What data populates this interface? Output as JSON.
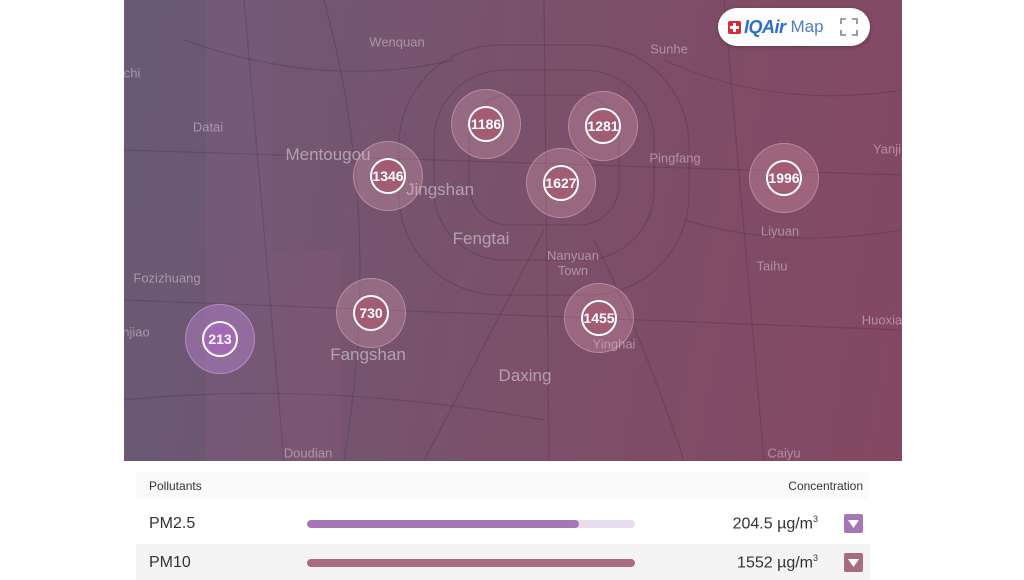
{
  "map": {
    "places": [
      {
        "name": "Wenquan",
        "big": false
      },
      {
        "name": "Sunhe",
        "big": false
      },
      {
        "name": "chi",
        "big": false
      },
      {
        "name": "Datai",
        "big": false
      },
      {
        "name": "Mentougou",
        "big": true
      },
      {
        "name": "Jingshan",
        "big": true
      },
      {
        "name": "Pingfang",
        "big": false
      },
      {
        "name": "Yanji",
        "big": false
      },
      {
        "name": "Fengtai",
        "big": true
      },
      {
        "name": "Liyuan",
        "big": false
      },
      {
        "name": "Nanyuan Town",
        "big": false
      },
      {
        "name": "Taihu",
        "big": false
      },
      {
        "name": "Fozizhuang",
        "big": false
      },
      {
        "name": "njiao",
        "big": false
      },
      {
        "name": "Fangshan",
        "big": true
      },
      {
        "name": "Huoxia",
        "big": false
      },
      {
        "name": "Daxing",
        "big": true
      },
      {
        "name": "Yinghai",
        "big": false
      },
      {
        "name": "Doudian",
        "big": false
      },
      {
        "name": "Caiyu",
        "big": false
      }
    ],
    "clusters": [
      {
        "value": "1186",
        "level": "high"
      },
      {
        "value": "1281",
        "level": "high"
      },
      {
        "value": "1346",
        "level": "high"
      },
      {
        "value": "1627",
        "level": "high"
      },
      {
        "value": "1996",
        "level": "high"
      },
      {
        "value": "730",
        "level": "high"
      },
      {
        "value": "1455",
        "level": "high"
      },
      {
        "value": "213",
        "level": "low"
      }
    ]
  },
  "brand": {
    "logo": "IQAir",
    "label": "Map",
    "icon": "swiss-cross-icon",
    "fullscreen_icon": "fullscreen-icon"
  },
  "panel": {
    "header_left": "Pollutants",
    "header_right": "Concentration",
    "rows": [
      {
        "name": "PM2.5",
        "value": "204.5",
        "unit": "µg/m",
        "unit_sup": "3",
        "level": 0.83,
        "color": "#a577b8",
        "toggle_color": "#a577b8",
        "toggle_icon": "chevron-down-icon"
      },
      {
        "name": "PM10",
        "value": "1552",
        "unit": "µg/m",
        "unit_sup": "3",
        "level": 1.0,
        "color": "#a86b82",
        "toggle_color": "#a86b82",
        "toggle_icon": "chevron-down-icon"
      }
    ]
  },
  "colors": {
    "map_high": "#844862",
    "map_low": "#6d5a76",
    "cluster_low": "#a469b6",
    "cluster_high": "#a25c74"
  }
}
